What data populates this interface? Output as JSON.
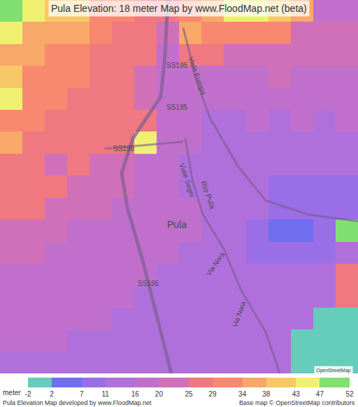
{
  "chart_data": {
    "type": "heatmap",
    "title": "Pula Elevation: 18 meter Map by www.FloodMap.net (beta)",
    "tick_labels": false,
    "cells": [
      [
        49,
        45,
        40,
        40,
        31,
        31,
        27,
        27,
        31,
        36,
        45,
        45,
        40,
        36,
        18,
        18
      ],
      [
        45,
        36,
        36,
        36,
        31,
        27,
        27,
        22,
        36,
        31,
        31,
        31,
        31,
        22,
        22,
        22
      ],
      [
        36,
        36,
        31,
        31,
        27,
        27,
        27,
        18,
        27,
        27,
        22,
        22,
        22,
        22,
        22,
        22
      ],
      [
        40,
        31,
        31,
        31,
        27,
        27,
        22,
        18,
        18,
        18,
        18,
        18,
        22,
        18,
        18,
        18
      ],
      [
        45,
        31,
        31,
        27,
        27,
        27,
        22,
        18,
        18,
        18,
        18,
        18,
        18,
        18,
        18,
        18
      ],
      [
        31,
        31,
        27,
        27,
        27,
        27,
        27,
        18,
        18,
        13,
        13,
        18,
        13,
        18,
        13,
        18
      ],
      [
        36,
        27,
        27,
        27,
        27,
        27,
        45,
        18,
        18,
        13,
        13,
        13,
        13,
        13,
        13,
        13
      ],
      [
        27,
        27,
        22,
        27,
        22,
        22,
        18,
        18,
        13,
        13,
        13,
        13,
        13,
        13,
        13,
        13
      ],
      [
        27,
        27,
        27,
        22,
        22,
        22,
        18,
        18,
        13,
        13,
        13,
        13,
        9,
        9,
        9,
        9
      ],
      [
        27,
        27,
        22,
        22,
        22,
        18,
        18,
        18,
        18,
        13,
        13,
        13,
        9,
        9,
        9,
        9
      ],
      [
        22,
        22,
        22,
        18,
        18,
        18,
        18,
        18,
        18,
        13,
        13,
        9,
        5,
        5,
        9,
        49
      ],
      [
        22,
        22,
        18,
        18,
        18,
        18,
        18,
        18,
        13,
        13,
        13,
        9,
        9,
        9,
        9,
        13
      ],
      [
        18,
        18,
        18,
        18,
        18,
        18,
        18,
        13,
        13,
        13,
        13,
        13,
        13,
        13,
        13,
        27
      ],
      [
        18,
        18,
        18,
        18,
        18,
        18,
        13,
        13,
        13,
        13,
        13,
        13,
        13,
        13,
        13,
        27
      ],
      [
        18,
        18,
        18,
        18,
        18,
        13,
        13,
        13,
        13,
        13,
        13,
        13,
        13,
        13,
        0,
        0
      ],
      [
        18,
        18,
        18,
        13,
        13,
        13,
        13,
        13,
        13,
        13,
        13,
        13,
        13,
        0,
        0,
        0
      ],
      [
        13,
        13,
        13,
        13,
        13,
        13,
        13,
        13,
        13,
        13,
        13,
        13,
        13,
        0,
        0,
        0
      ]
    ],
    "colorbar": {
      "label": "meter",
      "range": [
        -2,
        52
      ],
      "ticks": [
        -2,
        2,
        7,
        11,
        16,
        20,
        25,
        29,
        34,
        38,
        43,
        47,
        52
      ],
      "colors": [
        "#66ccbb",
        "#6f6ff0",
        "#9a6ee6",
        "#b070dc",
        "#c070cc",
        "#d070b8",
        "#f07880",
        "#f88870",
        "#f8a868",
        "#f8c868",
        "#f0f070",
        "#80e070"
      ]
    },
    "annotations": [
      "SS195",
      "SS195",
      "SS195",
      "SS195",
      "Viale Europa",
      "Viale Segni",
      "Rio Pula",
      "Pula",
      "Via Nora",
      "Via Nora"
    ],
    "badge": "OpenStreetMap",
    "footer": [
      "Pula Elevation Map developed by www.FloodMap.net",
      "Base map © OpenStreetMap contributors"
    ]
  }
}
